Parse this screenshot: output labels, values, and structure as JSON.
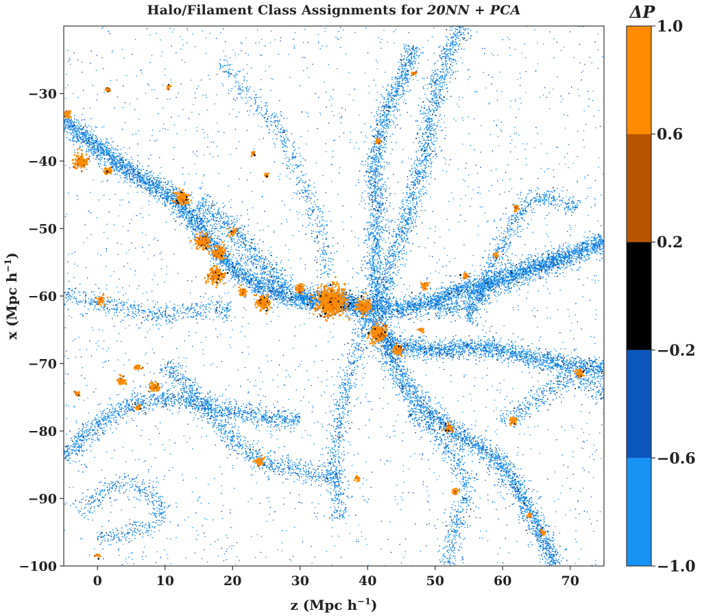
{
  "chart_data": {
    "type": "scatter",
    "title_prefix": "Halo/Filament Class Assignments for ",
    "title_method": "20NN + PCA",
    "xlabel": "z (Mpc h",
    "xlabel_sup": "−1",
    "xlabel_end": ")",
    "ylabel": "x (Mpc h",
    "ylabel_sup": "−1",
    "ylabel_end": ")",
    "xlim": [
      -5,
      75
    ],
    "ylim": [
      -100,
      -20
    ],
    "xticks": [
      0,
      10,
      20,
      30,
      40,
      50,
      60,
      70
    ],
    "yticks": [
      -30,
      -40,
      -50,
      -60,
      -70,
      -80,
      -90,
      -100
    ],
    "xtick_labels": [
      "0",
      "10",
      "20",
      "30",
      "40",
      "50",
      "60",
      "70"
    ],
    "ytick_labels": [
      "−30",
      "−40",
      "−50",
      "−60",
      "−70",
      "−80",
      "−90",
      "−100"
    ],
    "colorbar": {
      "label": "ΔP",
      "range": [
        -1.0,
        1.0
      ],
      "ticks": [
        1.0,
        0.6,
        0.2,
        -0.2,
        -0.6,
        -1.0
      ],
      "tick_labels": [
        "1.0",
        "0.6",
        "0.2",
        "−0.2",
        "−0.6",
        "−1.0"
      ],
      "bins": [
        {
          "from": -1.0,
          "to": -0.6,
          "color": "#1793f5"
        },
        {
          "from": -0.6,
          "to": -0.2,
          "color": "#0b56bd"
        },
        {
          "from": -0.2,
          "to": 0.2,
          "color": "#000000"
        },
        {
          "from": 0.2,
          "to": 0.6,
          "color": "#b85400"
        },
        {
          "from": 0.6,
          "to": 1.0,
          "color": "#ff8c00"
        }
      ]
    },
    "filaments": [
      {
        "points": [
          [
            -5,
            -34
          ],
          [
            0,
            -38
          ],
          [
            4,
            -41
          ],
          [
            8,
            -43.5
          ],
          [
            12,
            -46
          ],
          [
            16,
            -51
          ],
          [
            20,
            -56
          ],
          [
            25,
            -59
          ],
          [
            30,
            -60.5
          ],
          [
            35,
            -61
          ],
          [
            40,
            -61.5
          ],
          [
            43,
            -62
          ],
          [
            48,
            -61.5
          ],
          [
            54,
            -59
          ],
          [
            60,
            -57.5
          ],
          [
            65,
            -56
          ],
          [
            75,
            -52
          ]
        ],
        "density": 1.0
      },
      {
        "points": [
          [
            30,
            -60.5
          ],
          [
            35,
            -60
          ],
          [
            40,
            -62
          ],
          [
            42,
            -65
          ],
          [
            44,
            -67.5
          ],
          [
            50,
            -68
          ],
          [
            56,
            -67.5
          ],
          [
            62,
            -68.5
          ],
          [
            68,
            -70
          ],
          [
            75,
            -71
          ]
        ],
        "density": 0.8
      },
      {
        "points": [
          [
            42,
            -66
          ],
          [
            44,
            -70
          ],
          [
            46,
            -74
          ],
          [
            50,
            -78
          ],
          [
            54,
            -81
          ],
          [
            58,
            -83
          ],
          [
            62,
            -88
          ],
          [
            65,
            -94
          ],
          [
            68,
            -100
          ]
        ],
        "density": 0.7
      },
      {
        "points": [
          [
            41,
            -62
          ],
          [
            41,
            -55
          ],
          [
            41.5,
            -48
          ],
          [
            41,
            -42
          ],
          [
            41.5,
            -37
          ],
          [
            43,
            -32
          ],
          [
            45,
            -28
          ],
          [
            47,
            -23
          ]
        ],
        "density": 0.55
      },
      {
        "points": [
          [
            42,
            -61
          ],
          [
            44,
            -54
          ],
          [
            47,
            -45
          ],
          [
            49,
            -37
          ],
          [
            50,
            -30
          ],
          [
            52,
            -24
          ],
          [
            54,
            -20
          ]
        ],
        "density": 0.45
      },
      {
        "points": [
          [
            -5,
            -84
          ],
          [
            0,
            -79
          ],
          [
            5,
            -76
          ],
          [
            10,
            -75
          ],
          [
            15,
            -76
          ],
          [
            20,
            -77
          ],
          [
            25,
            -78
          ],
          [
            30,
            -78.5
          ]
        ],
        "density": 0.5
      },
      {
        "points": [
          [
            10,
            -70
          ],
          [
            14,
            -74
          ],
          [
            18,
            -79
          ],
          [
            22,
            -83
          ],
          [
            25,
            -85
          ],
          [
            30,
            -86
          ],
          [
            36,
            -87
          ]
        ],
        "density": 0.4
      },
      {
        "points": [
          [
            50,
            -62
          ],
          [
            54,
            -62
          ],
          [
            58,
            -59
          ],
          [
            62,
            -56
          ],
          [
            66,
            -55
          ],
          [
            70,
            -54
          ]
        ],
        "density": 0.4
      },
      {
        "points": [
          [
            40,
            -63
          ],
          [
            38,
            -70
          ],
          [
            36,
            -77
          ],
          [
            35,
            -85
          ],
          [
            36,
            -93
          ]
        ],
        "density": 0.3
      },
      {
        "points": [
          [
            55,
            -64
          ],
          [
            58,
            -57
          ],
          [
            60,
            -52
          ],
          [
            63,
            -47
          ],
          [
            66,
            -45
          ],
          [
            71,
            -47
          ]
        ],
        "density": 0.35
      },
      {
        "points": [
          [
            -3,
            -92
          ],
          [
            2,
            -88
          ],
          [
            6,
            -88
          ],
          [
            10,
            -92
          ],
          [
            6,
            -95
          ],
          [
            0,
            -96
          ]
        ],
        "density": 0.25
      },
      {
        "points": [
          [
            15,
            -46
          ],
          [
            20,
            -50
          ],
          [
            24,
            -55
          ],
          [
            28,
            -59
          ]
        ],
        "density": 0.5
      },
      {
        "points": [
          [
            46,
            -77
          ],
          [
            50,
            -80
          ],
          [
            53,
            -84
          ],
          [
            55,
            -88
          ],
          [
            53,
            -94
          ],
          [
            52,
            -100
          ]
        ],
        "density": 0.3
      },
      {
        "points": [
          [
            60,
            -79
          ],
          [
            64,
            -76
          ],
          [
            68,
            -73
          ],
          [
            72,
            -72
          ],
          [
            75,
            -75
          ]
        ],
        "density": 0.3
      },
      {
        "points": [
          [
            -5,
            -60
          ],
          [
            0,
            -61
          ],
          [
            5,
            -62
          ],
          [
            10,
            -63
          ],
          [
            15,
            -62
          ],
          [
            20,
            -62
          ]
        ],
        "density": 0.3
      },
      {
        "points": [
          [
            18,
            -25
          ],
          [
            22,
            -30
          ],
          [
            27,
            -35
          ],
          [
            30,
            -42
          ],
          [
            33,
            -50
          ],
          [
            34,
            -57
          ]
        ],
        "density": 0.2
      }
    ],
    "halos": [
      {
        "x": 34.5,
        "y": -60.8,
        "r": 3.0,
        "n": 900
      },
      {
        "x": 41.5,
        "y": -65.5,
        "r": 1.8,
        "n": 320
      },
      {
        "x": 39.5,
        "y": -61.5,
        "r": 1.5,
        "n": 220
      },
      {
        "x": 24.5,
        "y": -61.0,
        "r": 1.6,
        "n": 200
      },
      {
        "x": 17.5,
        "y": -57.0,
        "r": 1.7,
        "n": 220
      },
      {
        "x": 15.5,
        "y": -52.0,
        "r": 1.5,
        "n": 210
      },
      {
        "x": 18.0,
        "y": -53.5,
        "r": 1.4,
        "n": 170
      },
      {
        "x": 12.5,
        "y": -45.5,
        "r": 1.4,
        "n": 190
      },
      {
        "x": -2.5,
        "y": -40.0,
        "r": 1.5,
        "n": 170
      },
      {
        "x": 1.5,
        "y": -41.5,
        "r": 0.9,
        "n": 70
      },
      {
        "x": 44.5,
        "y": -68.0,
        "r": 1.1,
        "n": 90
      },
      {
        "x": 3.5,
        "y": -72.5,
        "r": 0.9,
        "n": 80
      },
      {
        "x": 8.5,
        "y": -73.5,
        "r": 0.9,
        "n": 80
      },
      {
        "x": 6.0,
        "y": -70.5,
        "r": 0.7,
        "n": 45
      },
      {
        "x": 52.0,
        "y": -79.5,
        "r": 0.9,
        "n": 70
      },
      {
        "x": 71.5,
        "y": -71.5,
        "r": 0.9,
        "n": 65
      },
      {
        "x": 61.5,
        "y": -78.5,
        "r": 0.8,
        "n": 50
      },
      {
        "x": 24.0,
        "y": -84.5,
        "r": 0.9,
        "n": 60
      },
      {
        "x": 30.0,
        "y": -59.0,
        "r": 1.0,
        "n": 80
      },
      {
        "x": 21.5,
        "y": -59.5,
        "r": 0.9,
        "n": 60
      },
      {
        "x": 48.5,
        "y": -58.5,
        "r": 0.8,
        "n": 45
      },
      {
        "x": 62.0,
        "y": -47.0,
        "r": 0.6,
        "n": 35
      },
      {
        "x": 41.5,
        "y": -37.0,
        "r": 0.6,
        "n": 30
      },
      {
        "x": 0.5,
        "y": -60.5,
        "r": 1.0,
        "n": 60
      },
      {
        "x": 53.0,
        "y": -89.0,
        "r": 0.6,
        "n": 35
      },
      {
        "x": 64.0,
        "y": -92.5,
        "r": 0.5,
        "n": 25
      },
      {
        "x": 66.0,
        "y": -95.0,
        "r": 0.6,
        "n": 25
      },
      {
        "x": 38.5,
        "y": -87.0,
        "r": 0.6,
        "n": 30
      },
      {
        "x": -3.0,
        "y": -74.5,
        "r": 0.6,
        "n": 30
      },
      {
        "x": 20.0,
        "y": -50.5,
        "r": 0.8,
        "n": 45
      },
      {
        "x": 25.0,
        "y": -42.0,
        "r": 0.5,
        "n": 25
      },
      {
        "x": 59.0,
        "y": -54.0,
        "r": 0.6,
        "n": 25
      },
      {
        "x": 48.0,
        "y": -65.0,
        "r": 0.6,
        "n": 25
      },
      {
        "x": -4.5,
        "y": -33.0,
        "r": 0.8,
        "n": 45
      },
      {
        "x": 1.5,
        "y": -29.5,
        "r": 0.6,
        "n": 25
      },
      {
        "x": 6.0,
        "y": -76.5,
        "r": 0.6,
        "n": 25
      },
      {
        "x": 54.5,
        "y": -57.0,
        "r": 0.6,
        "n": 25
      },
      {
        "x": 23.0,
        "y": -39.0,
        "r": 0.5,
        "n": 20
      },
      {
        "x": 47.0,
        "y": -27.0,
        "r": 0.5,
        "n": 20
      },
      {
        "x": 0.0,
        "y": -98.5,
        "r": 0.5,
        "n": 18
      },
      {
        "x": 10.5,
        "y": -29.0,
        "r": 0.5,
        "n": 18
      }
    ]
  }
}
